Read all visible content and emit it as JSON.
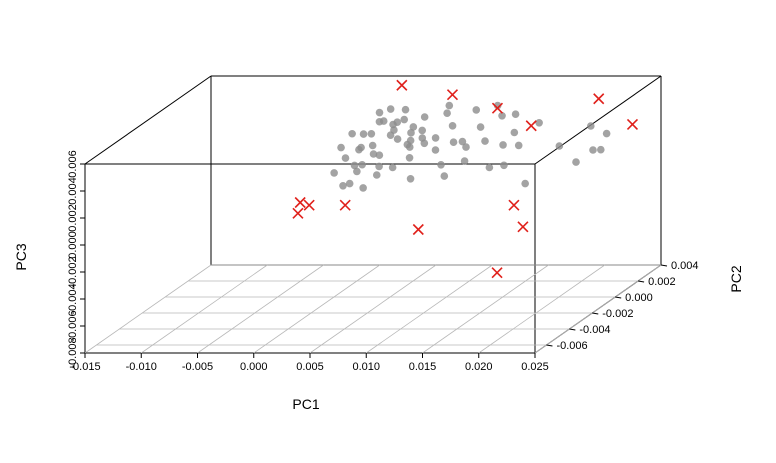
{
  "chart_data": {
    "type": "scatter",
    "title": "",
    "xlabel": "PC1",
    "ylabel": "PC2",
    "zlabel": "PC3",
    "xlim": [
      -0.015,
      0.025
    ],
    "ylim": [
      -0.007,
      0.004
    ],
    "zlim": [
      -0.008,
      0.006
    ],
    "x_ticks": [
      "-0.015",
      "-0.010",
      "-0.005",
      "0.000",
      "0.005",
      "0.010",
      "0.015",
      "0.020",
      "0.025"
    ],
    "y_ticks": [
      "-0.006",
      "-0.004",
      "-0.002",
      "0.000",
      "0.002",
      "0.004"
    ],
    "z_ticks": [
      "-0.008",
      "-0.006",
      "-0.004",
      "-0.002",
      "0.000",
      "0.002",
      "0.004",
      "0.006"
    ],
    "grid": "floor",
    "colors": {
      "points": "#8c8c8c",
      "highlight": "#e0201b",
      "box": "#000000",
      "grid": "#b8b8b8"
    },
    "series": [
      {
        "marker": "circle",
        "points": [
          [
            0.0015,
            0.0025,
            0.0035
          ],
          [
            0.0022,
            0.003,
            0.003
          ],
          [
            0.003,
            0.002,
            0.0028
          ],
          [
            0.0018,
            0.0015,
            0.0032
          ],
          [
            0.004,
            0.0028,
            0.0025
          ],
          [
            0.0025,
            0.001,
            0.002
          ],
          [
            0.0035,
            0.0018,
            0.0033
          ],
          [
            0.0045,
            0.0022,
            0.0018
          ],
          [
            0.001,
            0.0012,
            0.0022
          ],
          [
            0.0028,
            0.0035,
            0.0038
          ],
          [
            0.0038,
            0.0032,
            0.0027
          ],
          [
            0.005,
            0.0015,
            0.0024
          ],
          [
            0.002,
            0.0005,
            0.0015
          ],
          [
            0.0032,
            0.0008,
            0.0012
          ],
          [
            0.0012,
            0.0028,
            0.004
          ],
          [
            0.0048,
            0.003,
            0.002
          ],
          [
            0.0055,
            0.0012,
            0.0016
          ],
          [
            0.0008,
            0.0018,
            0.003
          ],
          [
            0.0026,
            0.0024,
            0.0045
          ],
          [
            0.0042,
            0.001,
            0.001
          ],
          [
            0.0036,
            0.0026,
            0.0036
          ],
          [
            0.0016,
            0.0008,
            0.0026
          ],
          [
            0.006,
            0.002,
            0.0022
          ],
          [
            0.0024,
            0.0032,
            0.0018
          ],
          [
            0.0044,
            0.0036,
            0.0032
          ],
          [
            0.003,
            0.0014,
            0.0042
          ],
          [
            0.0006,
            0.001,
            0.0035
          ],
          [
            0.0052,
            0.0026,
            0.0028
          ],
          [
            0.0034,
            0.0004,
            0.0008
          ],
          [
            0.0018,
            0.0022,
            0.0012
          ],
          [
            0.004,
            0.0016,
            0.004
          ],
          [
            0.0058,
            0.001,
            0.003
          ],
          [
            0.007,
            0.002,
            0.0026
          ],
          [
            0.0075,
            0.0015,
            0.002
          ],
          [
            0.008,
            0.0025,
            0.0032
          ],
          [
            0.0088,
            0.0018,
            0.0024
          ],
          [
            0.0095,
            0.0022,
            0.0018
          ],
          [
            0.0102,
            0.0012,
            0.0028
          ],
          [
            0.011,
            0.002,
            0.0034
          ],
          [
            0.0118,
            0.0016,
            0.0026
          ],
          [
            0.0125,
            0.0024,
            0.004
          ],
          [
            0.0132,
            0.0018,
            0.0022
          ],
          [
            0.0098,
            0.0028,
            0.0042
          ],
          [
            0.0085,
            0.001,
            0.0012
          ],
          [
            0.0108,
            0.0008,
            0.0016
          ],
          [
            0.014,
            0.002,
            0.003
          ],
          [
            0.015,
            0.0014,
            0.0024
          ],
          [
            0.016,
            0.0022,
            0.0036
          ],
          [
            0.0072,
            0.003,
            0.0044
          ],
          [
            0.0115,
            0.003,
            0.0044
          ],
          [
            0.0128,
            0.001,
            0.001
          ],
          [
            0.0092,
            0.0006,
            0.0006
          ],
          [
            -0.0005,
            0.0015,
            0.0014
          ],
          [
            -0.001,
            0.001,
            0.0006
          ],
          [
            -0.0002,
            0.0022,
            0.0
          ],
          [
            0.0004,
            0.0004,
            0.0
          ],
          [
            0.0002,
            0.0016,
            0.0008
          ],
          [
            0.0014,
            0.0,
            0.0004
          ],
          [
            -0.0012,
            0.0018,
            0.002
          ],
          [
            0.001,
            0.0024,
            0.0018
          ],
          [
            0.0028,
            -0.0002,
            0.0002
          ],
          [
            0.0062,
            0.0006,
            0.0004
          ],
          [
            0.018,
            0.002,
            0.002
          ],
          [
            0.021,
            0.0018,
            0.0036
          ],
          [
            0.022,
            0.0022,
            0.0028
          ],
          [
            0.0205,
            0.001,
            0.0014
          ],
          [
            0.0215,
            0.0015,
            0.002
          ],
          [
            0.0225,
            0.0012,
            0.0022
          ],
          [
            0.017,
            0.0,
            0.0004
          ],
          [
            0.0135,
            0.0026,
            0.004
          ],
          [
            0.0145,
            0.0006,
            0.0014
          ],
          [
            0.0066,
            0.0034,
            0.0036
          ]
        ]
      },
      {
        "marker": "cross",
        "points": [
          [
            0.004,
            0.002,
            0.0065
          ],
          [
            0.0085,
            0.002,
            0.0058
          ],
          [
            0.0125,
            0.002,
            0.0048
          ],
          [
            0.0155,
            0.002,
            0.0035
          ],
          [
            0.0215,
            0.002,
            0.0055
          ],
          [
            0.0245,
            0.002,
            0.0036
          ],
          [
            -0.003,
            0.0,
            -0.001
          ],
          [
            -0.0022,
            0.0,
            -0.0012
          ],
          [
            -0.0032,
            0.0,
            -0.0018
          ],
          [
            0.001,
            0.0,
            -0.0012
          ],
          [
            0.0075,
            0.0,
            -0.003
          ],
          [
            0.016,
            0.0,
            -0.0012
          ],
          [
            0.0168,
            0.0,
            -0.0028
          ],
          [
            0.0145,
            0.0,
            -0.0062
          ]
        ]
      }
    ]
  }
}
